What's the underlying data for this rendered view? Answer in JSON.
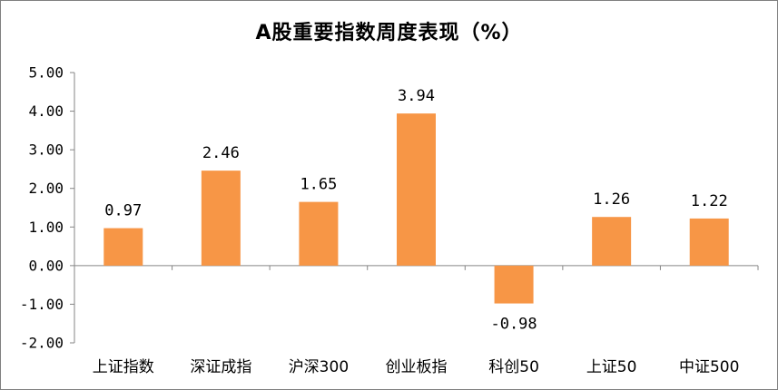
{
  "chart_data": {
    "type": "bar",
    "title": "A股重要指数周度表现（%）",
    "categories": [
      "上证指数",
      "深证成指",
      "沪深300",
      "创业板指",
      "科创50",
      "上证50",
      "中证500"
    ],
    "values": [
      0.97,
      2.46,
      1.65,
      3.94,
      -0.98,
      1.26,
      1.22
    ],
    "data_labels": [
      "0.97",
      "2.46",
      "1.65",
      "3.94",
      "-0.98",
      "1.26",
      "1.22"
    ],
    "yticks": [
      "5.00",
      "4.00",
      "3.00",
      "2.00",
      "1.00",
      "0.00",
      "-1.00",
      "-2.00"
    ],
    "ylim": [
      -2,
      5
    ],
    "grid": false,
    "legend": "none",
    "bar_color": "#F79646",
    "xlabel": "",
    "ylabel": ""
  }
}
